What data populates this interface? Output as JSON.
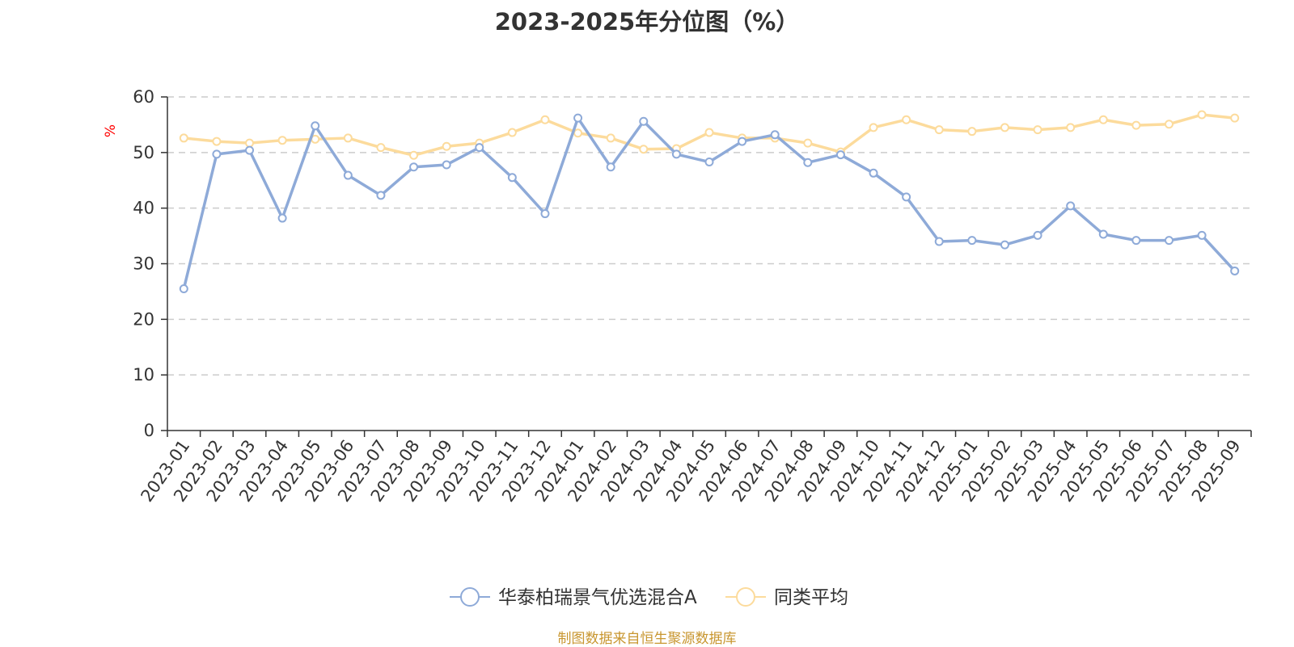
{
  "colors": {
    "series1": "#8eaad8",
    "series2": "#fcdb9c",
    "axis": "#333333",
    "grid": "#cccccc",
    "unit": "#ff0000",
    "footer": "#c8962f"
  },
  "footer": "制图数据来自恒生聚源数据库",
  "chart_data": {
    "type": "line",
    "title": "2023-2025年分位图（%）",
    "ylabel": "%",
    "xlabel": "",
    "ylim": [
      0,
      60
    ],
    "yticks": [
      0,
      10,
      20,
      30,
      40,
      50,
      60
    ],
    "grid": true,
    "legend": "bottom-center",
    "categories": [
      "2023-01",
      "2023-02",
      "2023-03",
      "2023-04",
      "2023-05",
      "2023-06",
      "2023-07",
      "2023-08",
      "2023-09",
      "2023-10",
      "2023-11",
      "2023-12",
      "2024-01",
      "2024-02",
      "2024-03",
      "2024-04",
      "2024-05",
      "2024-06",
      "2024-07",
      "2024-08",
      "2024-09",
      "2024-10",
      "2024-11",
      "2024-12",
      "2025-01",
      "2025-02",
      "2025-03",
      "2025-04",
      "2025-05",
      "2025-06",
      "2025-07",
      "2025-08",
      "2025-09"
    ],
    "series": [
      {
        "name": "华泰柏瑞景气优选混合A",
        "values": [
          25.5,
          49.7,
          50.4,
          38.2,
          54.8,
          45.9,
          42.3,
          47.4,
          47.8,
          50.9,
          45.5,
          39.0,
          56.2,
          47.4,
          55.6,
          49.7,
          48.3,
          52.0,
          53.2,
          48.2,
          49.6,
          46.3,
          42.0,
          34.0,
          34.2,
          33.4,
          35.1,
          40.4,
          35.3,
          34.2,
          34.2,
          35.1,
          28.7
        ]
      },
      {
        "name": "同类平均",
        "values": [
          52.6,
          52.0,
          51.7,
          52.2,
          52.4,
          52.6,
          50.9,
          49.5,
          51.1,
          51.7,
          53.6,
          55.9,
          53.5,
          52.6,
          50.6,
          50.7,
          53.6,
          52.6,
          52.6,
          51.7,
          50.1,
          54.5,
          55.9,
          54.1,
          53.8,
          54.5,
          54.1,
          54.5,
          55.9,
          54.9,
          55.1,
          56.8,
          56.2
        ]
      }
    ]
  }
}
